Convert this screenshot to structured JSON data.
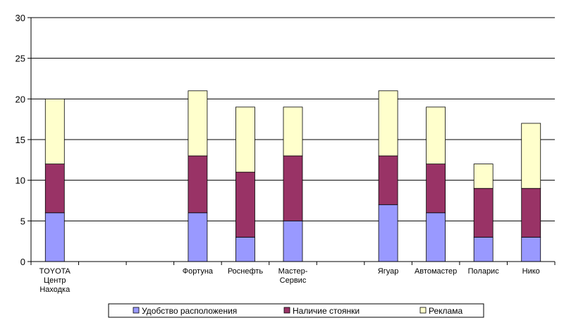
{
  "chart_data": {
    "type": "bar",
    "stacked": true,
    "title": "",
    "xlabel": "",
    "ylabel": "",
    "ylim": [
      0,
      30
    ],
    "yticks": [
      0,
      5,
      10,
      15,
      20,
      25,
      30
    ],
    "grid": true,
    "legend_position": "bottom",
    "categories": [
      [
        "TOYOTA",
        "Центр",
        "Находка"
      ],
      [
        ""
      ],
      [
        ""
      ],
      [
        "Фортуна"
      ],
      [
        "Роснефть"
      ],
      [
        "Мастер-",
        "Сервис"
      ],
      [
        ""
      ],
      [
        "Ягуар"
      ],
      [
        "Автомастер"
      ],
      [
        "Поларис"
      ],
      [
        "Нико"
      ]
    ],
    "series": [
      {
        "name": "Удобство расположения",
        "color": "#9999ff",
        "values": [
          6,
          0,
          0,
          6,
          3,
          5,
          0,
          7,
          6,
          3,
          3
        ]
      },
      {
        "name": "Наличие стоянки",
        "color": "#993366",
        "values": [
          6,
          0,
          0,
          7,
          8,
          8,
          0,
          6,
          6,
          6,
          6
        ]
      },
      {
        "name": "Реклама",
        "color": "#ffffcc",
        "values": [
          8,
          0,
          0,
          8,
          8,
          6,
          0,
          8,
          7,
          3,
          8
        ]
      }
    ]
  }
}
